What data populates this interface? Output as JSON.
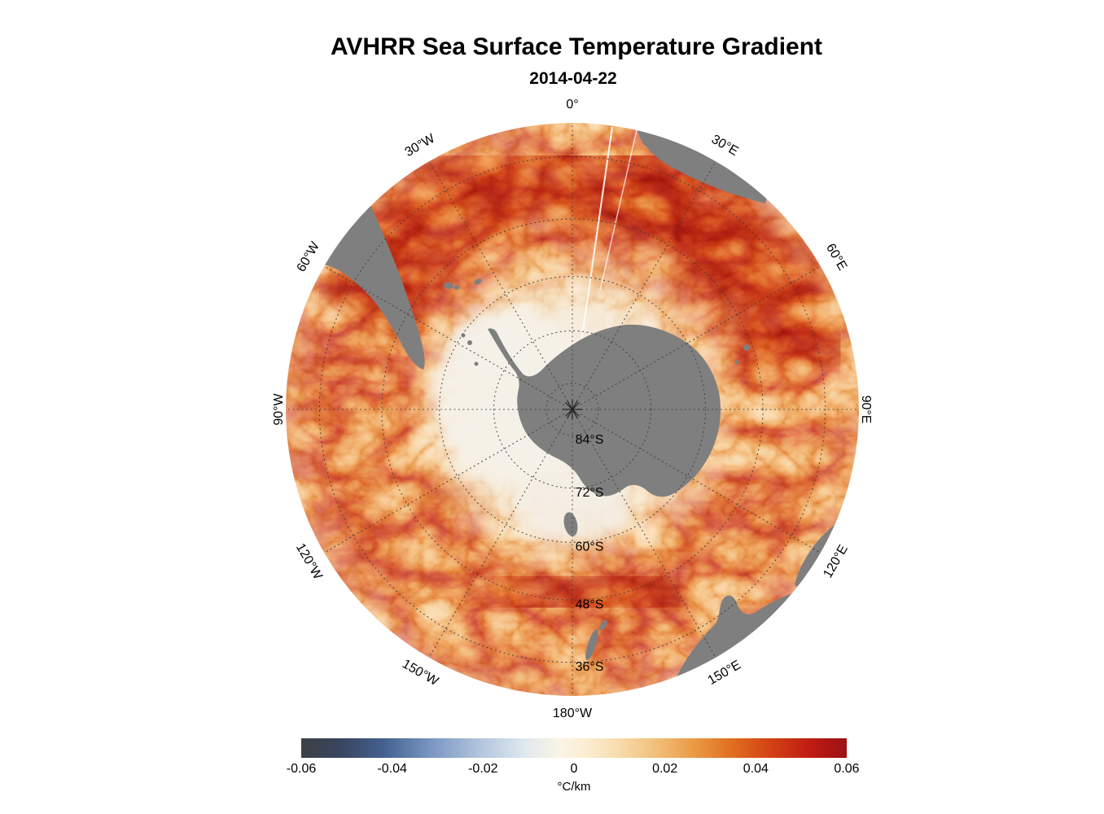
{
  "chart_data": {
    "type": "heatmap",
    "title": "AVHRR Sea Surface Temperature Gradient",
    "subtitle_date": "2014-04-22",
    "projection": "south-polar-stereographic",
    "variable": "sea surface temperature gradient",
    "units": "°C/km",
    "value_range": [
      -0.06,
      0.06
    ],
    "outer_latitude": -30,
    "meridian_labels": [
      {
        "label": "0°",
        "azimuth": 0
      },
      {
        "label": "30°E",
        "azimuth": 30
      },
      {
        "label": "60°E",
        "azimuth": 60
      },
      {
        "label": "90°E",
        "azimuth": 90
      },
      {
        "label": "120°E",
        "azimuth": 120
      },
      {
        "label": "150°E",
        "azimuth": 150
      },
      {
        "label": "180°W",
        "azimuth": 180
      },
      {
        "label": "150°W",
        "azimuth": 210
      },
      {
        "label": "120°W",
        "azimuth": 240
      },
      {
        "label": "90°W",
        "azimuth": 270
      },
      {
        "label": "60°W",
        "azimuth": 300
      },
      {
        "label": "30°W",
        "azimuth": 330
      }
    ],
    "parallel_labels": [
      {
        "label": "84°S",
        "latitude": -84
      },
      {
        "label": "72°S",
        "latitude": -72
      },
      {
        "label": "60°S",
        "latitude": -60
      },
      {
        "label": "48°S",
        "latitude": -48
      },
      {
        "label": "36°S",
        "latitude": -36
      }
    ],
    "colorbar": {
      "orientation": "horizontal",
      "ticks": [
        -0.06,
        -0.04,
        -0.02,
        0,
        0.02,
        0.04,
        0.06
      ],
      "tick_labels": [
        "-0.06",
        "-0.04",
        "-0.02",
        "0",
        "0.02",
        "0.04",
        "0.06"
      ],
      "units_label": "°C/km",
      "gradient_stops": [
        {
          "pos": 0.0,
          "color": "#3e4046"
        },
        {
          "pos": 0.07,
          "color": "#39445e"
        },
        {
          "pos": 0.15,
          "color": "#44608f"
        },
        {
          "pos": 0.24,
          "color": "#7b97c2"
        },
        {
          "pos": 0.33,
          "color": "#b3c6de"
        },
        {
          "pos": 0.41,
          "color": "#e0e8ef"
        },
        {
          "pos": 0.475,
          "color": "#faf4e4"
        },
        {
          "pos": 0.52,
          "color": "#fbeed3"
        },
        {
          "pos": 0.58,
          "color": "#f7dcae"
        },
        {
          "pos": 0.65,
          "color": "#f1bf7c"
        },
        {
          "pos": 0.72,
          "color": "#ea9a44"
        },
        {
          "pos": 0.79,
          "color": "#e06e20"
        },
        {
          "pos": 0.86,
          "color": "#d34214"
        },
        {
          "pos": 0.93,
          "color": "#c11d13"
        },
        {
          "pos": 1.0,
          "color": "#9c1115"
        }
      ]
    },
    "colors": {
      "land": "#7f7f7f",
      "ocean_base": "#fdf3e3",
      "ice": "#f5f1e8",
      "graticule": "#3c3c3c",
      "front_strong": "#9c1115",
      "front_mid": "#d34214",
      "front_weak": "#ea9a44"
    }
  }
}
